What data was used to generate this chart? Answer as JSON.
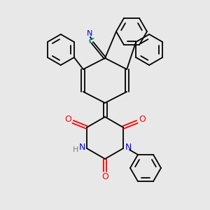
{
  "bg_color": "#e8e8e8",
  "bond_color": "#000000",
  "atom_colors": {
    "N": "#0000ff",
    "O": "#ff0000",
    "C_label": "#008080",
    "H": "#808080"
  },
  "figsize": [
    3.0,
    3.0
  ],
  "dpi": 100
}
